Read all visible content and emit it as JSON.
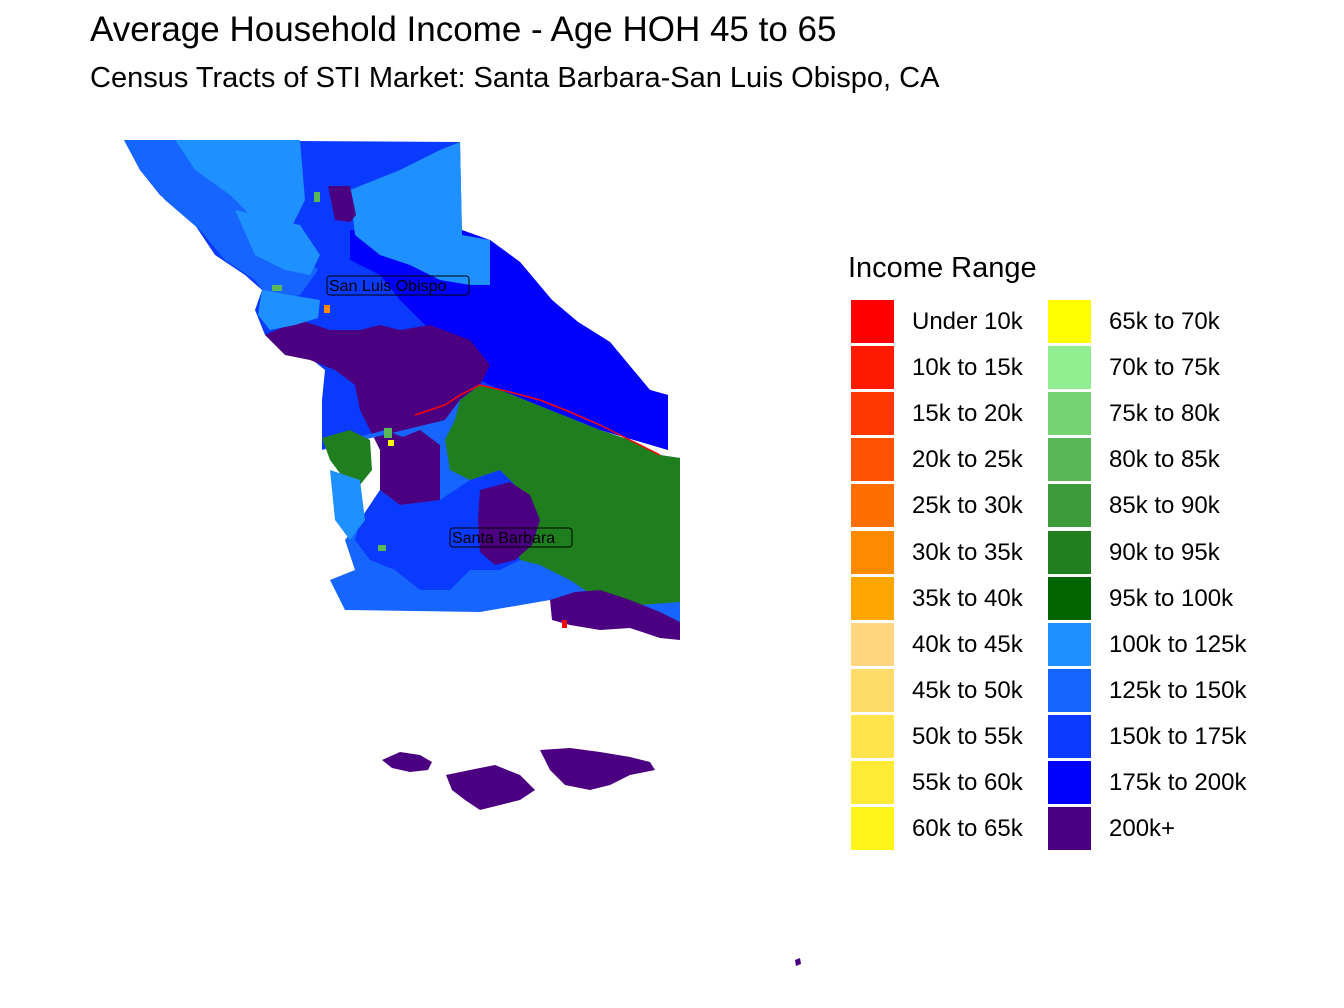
{
  "title": "Average Household Income - Age HOH 45 to 65",
  "subtitle": "Census Tracts of STI Market: Santa Barbara-San Luis Obispo, CA",
  "legend": {
    "title": "Income Range",
    "items": [
      {
        "label": "Under 10k",
        "color": "#FF0000"
      },
      {
        "label": "10k to 15k",
        "color": "#FF1A00"
      },
      {
        "label": "15k to 20k",
        "color": "#FF3600"
      },
      {
        "label": "20k to 25k",
        "color": "#FF5200"
      },
      {
        "label": "25k to 30k",
        "color": "#FF6E00"
      },
      {
        "label": "30k to 35k",
        "color": "#FF8A00"
      },
      {
        "label": "35k to 40k",
        "color": "#FFA600"
      },
      {
        "label": "40k to 45k",
        "color": "#FFD580"
      },
      {
        "label": "45k to 50k",
        "color": "#FFDC6A"
      },
      {
        "label": "50k to 55k",
        "color": "#FFE44E"
      },
      {
        "label": "55k to 60k",
        "color": "#FFEB36"
      },
      {
        "label": "60k to 65k",
        "color": "#FFF31C"
      },
      {
        "label": "65k to 70k",
        "color": "#FFFF00"
      },
      {
        "label": "70k to 75k",
        "color": "#90EE90"
      },
      {
        "label": "75k to 80k",
        "color": "#74D474"
      },
      {
        "label": "80k to 85k",
        "color": "#58B858"
      },
      {
        "label": "85k to 90k",
        "color": "#3C9C3C"
      },
      {
        "label": "90k to 95k",
        "color": "#1F7F1F"
      },
      {
        "label": "95k to 100k",
        "color": "#006400"
      },
      {
        "label": "100k to 125k",
        "color": "#1E90FF"
      },
      {
        "label": "125k to 150k",
        "color": "#1765FF"
      },
      {
        "label": "150k to 175k",
        "color": "#0B3AFF"
      },
      {
        "label": "175k to 200k",
        "color": "#0000FF"
      },
      {
        "label": "200k+",
        "color": "#4B0082"
      }
    ]
  },
  "cities": [
    {
      "label": "San Luis Obispo"
    },
    {
      "label": "Santa Barbara"
    }
  ]
}
